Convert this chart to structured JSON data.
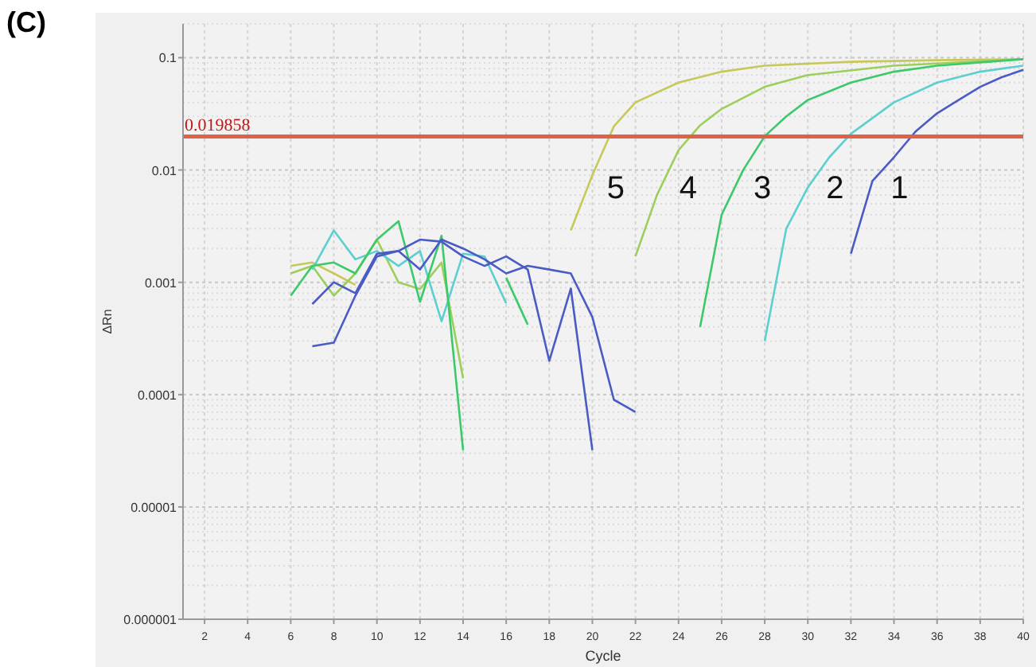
{
  "chart_data": {
    "type": "line",
    "title": "(C)",
    "xlabel": "Cycle",
    "ylabel": "ΔRn",
    "log": "y",
    "grid": true,
    "marker": "none",
    "line_style": "solid",
    "xlim": [
      1,
      40
    ],
    "xticks": [
      2,
      4,
      6,
      8,
      10,
      12,
      14,
      16,
      18,
      20,
      22,
      24,
      26,
      28,
      30,
      32,
      34,
      36,
      38,
      40
    ],
    "ylim": [
      1e-06,
      0.2
    ],
    "yticks": [
      {
        "value": 1e-06,
        "label": "0.000001"
      },
      {
        "value": 1e-05,
        "label": "0.00001"
      },
      0.0001,
      0.001,
      0.01,
      0.1
    ],
    "ref_lines": [
      {
        "axis": "y",
        "value": 0.019858,
        "label": "0.019858",
        "color": "#e06048"
      }
    ],
    "series": [
      {
        "name": "5",
        "color": "#c8c85a",
        "x": [
          19,
          20,
          21,
          22,
          24,
          26,
          28,
          32,
          36,
          40
        ],
        "values": [
          0.0029,
          0.009,
          0.0245,
          0.04,
          0.06,
          0.075,
          0.085,
          0.092,
          0.095,
          0.097
        ]
      },
      {
        "name": "4",
        "color": "#9ccf5a",
        "x": [
          22,
          23,
          24,
          25,
          26,
          28,
          30,
          34,
          40
        ],
        "values": [
          0.0017,
          0.006,
          0.015,
          0.025,
          0.035,
          0.055,
          0.07,
          0.085,
          0.097
        ]
      },
      {
        "name": "3",
        "color": "#3cc96a",
        "x": [
          25,
          26,
          27,
          28,
          29,
          30,
          32,
          34,
          36,
          40
        ],
        "values": [
          0.0004,
          0.004,
          0.01,
          0.02,
          0.03,
          0.042,
          0.06,
          0.075,
          0.085,
          0.097
        ]
      },
      {
        "name": "2",
        "color": "#5ccfcf",
        "x": [
          28,
          29,
          30,
          31,
          32,
          34,
          36,
          38,
          40
        ],
        "values": [
          0.0003,
          0.003,
          0.007,
          0.013,
          0.021,
          0.04,
          0.06,
          0.075,
          0.085
        ]
      },
      {
        "name": "1",
        "color": "#4a5bc4",
        "x": [
          32,
          33,
          34,
          35,
          36,
          37,
          38,
          39,
          40
        ],
        "values": [
          0.0018,
          0.008,
          0.013,
          0.022,
          0.032,
          0.042,
          0.055,
          0.067,
          0.078
        ]
      },
      {
        "color": "#c8c85a",
        "x": [
          6,
          7,
          8,
          9
        ],
        "values": [
          0.0014,
          0.0015,
          0.0012,
          0.00095
        ]
      },
      {
        "color": "#9ccf5a",
        "x": [
          6,
          7,
          8,
          9,
          10,
          11,
          12,
          13,
          14
        ],
        "values": [
          0.0012,
          0.0014,
          0.00076,
          0.0012,
          0.0024,
          0.001,
          0.00087,
          0.0015,
          0.00014
        ]
      },
      {
        "color": "#5ccfcf",
        "x": [
          7,
          8,
          9,
          10,
          11,
          12,
          13,
          14,
          15,
          16
        ],
        "values": [
          0.0013,
          0.0029,
          0.0016,
          0.0019,
          0.0014,
          0.0019,
          0.00045,
          0.0018,
          0.0017,
          0.00065
        ]
      },
      {
        "color": "#3cc96a",
        "x": [
          6,
          7,
          8,
          9,
          10,
          11,
          12,
          13,
          14
        ],
        "values": [
          0.00076,
          0.0014,
          0.0015,
          0.0012,
          0.0024,
          0.0035,
          0.00067,
          0.0026,
          3.2e-05
        ]
      },
      {
        "color": "#3cc96a",
        "x": [
          16,
          17
        ],
        "values": [
          0.0011,
          0.00042
        ]
      },
      {
        "color": "#4a5bc4",
        "x": [
          7,
          8,
          9,
          10,
          11,
          12,
          13,
          14,
          15,
          16,
          17,
          18,
          19,
          20,
          21,
          22
        ],
        "values": [
          0.00064,
          0.001,
          0.0008,
          0.0018,
          0.0019,
          0.0013,
          0.0024,
          0.002,
          0.0016,
          0.0012,
          0.0014,
          0.0013,
          0.0012,
          0.00049,
          9e-05,
          7e-05
        ]
      },
      {
        "color": "#4a5bc4",
        "x": [
          7,
          8,
          9,
          10,
          11,
          12,
          13,
          14,
          15,
          16,
          17,
          18,
          19,
          20
        ],
        "values": [
          0.00027,
          0.00029,
          0.00076,
          0.0017,
          0.0019,
          0.0024,
          0.0023,
          0.0017,
          0.0014,
          0.0017,
          0.0013,
          0.0002,
          0.00088,
          3.2e-05
        ]
      }
    ]
  }
}
